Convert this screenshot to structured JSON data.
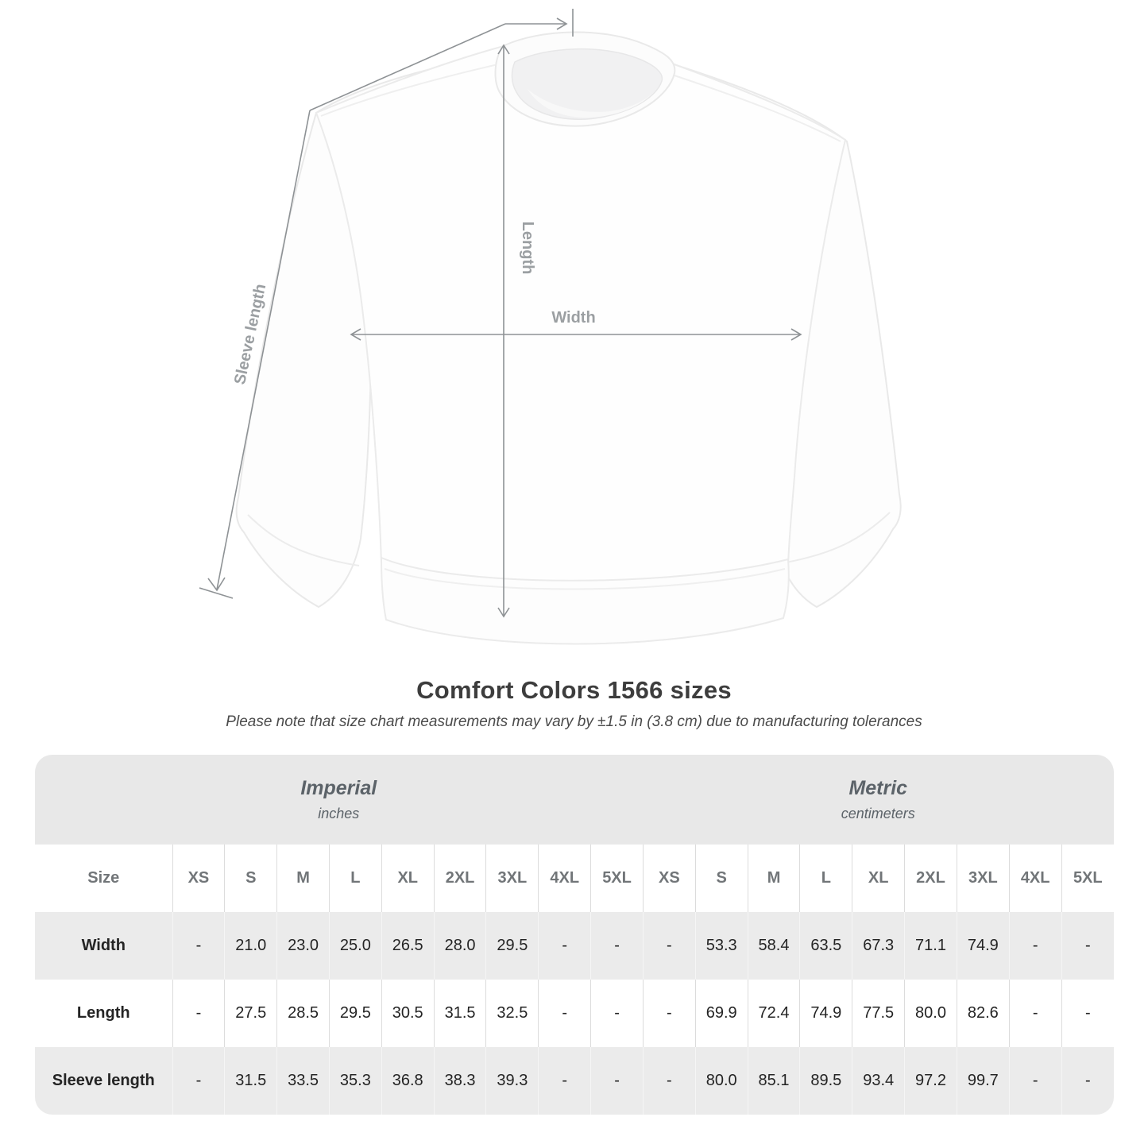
{
  "chart_data": {
    "type": "table",
    "title": "Comfort Colors 1566 sizes",
    "note": "Please note that size chart measurements may vary by ±1.5 in (3.8 cm) due to manufacturing tolerances",
    "row_header": "Size",
    "column_groups": [
      {
        "label": "Imperial",
        "unit": "inches",
        "columns": [
          "XS",
          "S",
          "M",
          "L",
          "XL",
          "2XL",
          "3XL",
          "4XL",
          "5XL"
        ]
      },
      {
        "label": "Metric",
        "unit": "centimeters",
        "columns": [
          "XS",
          "S",
          "M",
          "L",
          "XL",
          "2XL",
          "3XL",
          "4XL",
          "5XL"
        ]
      }
    ],
    "rows": [
      {
        "label": "Width",
        "imperial": [
          "-",
          "21.0",
          "23.0",
          "25.0",
          "26.5",
          "28.0",
          "29.5",
          "-",
          "-"
        ],
        "metric": [
          "-",
          "53.3",
          "58.4",
          "63.5",
          "67.3",
          "71.1",
          "74.9",
          "-",
          "-"
        ]
      },
      {
        "label": "Length",
        "imperial": [
          "-",
          "27.5",
          "28.5",
          "29.5",
          "30.5",
          "31.5",
          "32.5",
          "-",
          "-"
        ],
        "metric": [
          "-",
          "69.9",
          "72.4",
          "74.9",
          "77.5",
          "80.0",
          "82.6",
          "-",
          "-"
        ]
      },
      {
        "label": "Sleeve length",
        "imperial": [
          "-",
          "31.5",
          "33.5",
          "35.3",
          "36.8",
          "38.3",
          "39.3",
          "-",
          "-"
        ],
        "metric": [
          "-",
          "80.0",
          "85.1",
          "89.5",
          "93.4",
          "97.2",
          "99.7",
          "-",
          "-"
        ]
      }
    ]
  },
  "diagram": {
    "labels": {
      "width": "Width",
      "length": "Length",
      "sleeve_length": "Sleeve length"
    }
  },
  "colors": {
    "measure_line": "#8e9295",
    "measure_label": "#9b9fa2",
    "table_band": "#e8e8e8",
    "table_row_alt": "#ebebeb",
    "heading_text": "#3d3d3d",
    "muted_label": "#717578"
  }
}
